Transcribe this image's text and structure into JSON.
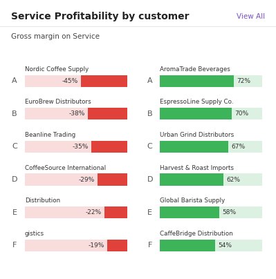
{
  "header": {
    "title": "Service Profitability by customer",
    "link": "View All",
    "subtitle": "Gross margin on Service"
  },
  "chart_data": [
    {
      "type": "bar",
      "orientation": "horizontal",
      "ranks": [
        "A",
        "B",
        "C",
        "D",
        "E",
        "F"
      ],
      "categories": [
        "Nordic Coffee Supply",
        "EuroBrew Distributors",
        "Beanline Trading",
        "CoffeeSource International",
        "Distribution",
        "gistics"
      ],
      "values": [
        -45,
        -38,
        -35,
        -29,
        -22,
        -19
      ],
      "value_labels": [
        "-45%",
        "-38%",
        "-35%",
        "-29%",
        "-22%",
        "-19%"
      ],
      "xlim": [
        -100,
        0
      ],
      "color": "#e0413a",
      "data_labels": true,
      "tick_labels": false
    },
    {
      "type": "bar",
      "orientation": "horizontal",
      "ranks": [
        "A",
        "B",
        "C",
        "D",
        "E",
        "F"
      ],
      "categories": [
        "AromaTrade Beverages",
        "EspressoLine Supply Co.",
        "Urban Grind Distributors",
        "Harvest & Roast Imports",
        "Global Barista Supply",
        "CaffeBridge Distribution"
      ],
      "values": [
        72,
        70,
        67,
        62,
        58,
        54
      ],
      "value_labels": [
        "72%",
        "70%",
        "67%",
        "62%",
        "58%",
        "54%"
      ],
      "xlim": [
        0,
        100
      ],
      "color": "#3db35a",
      "data_labels": true,
      "tick_labels": false
    }
  ]
}
